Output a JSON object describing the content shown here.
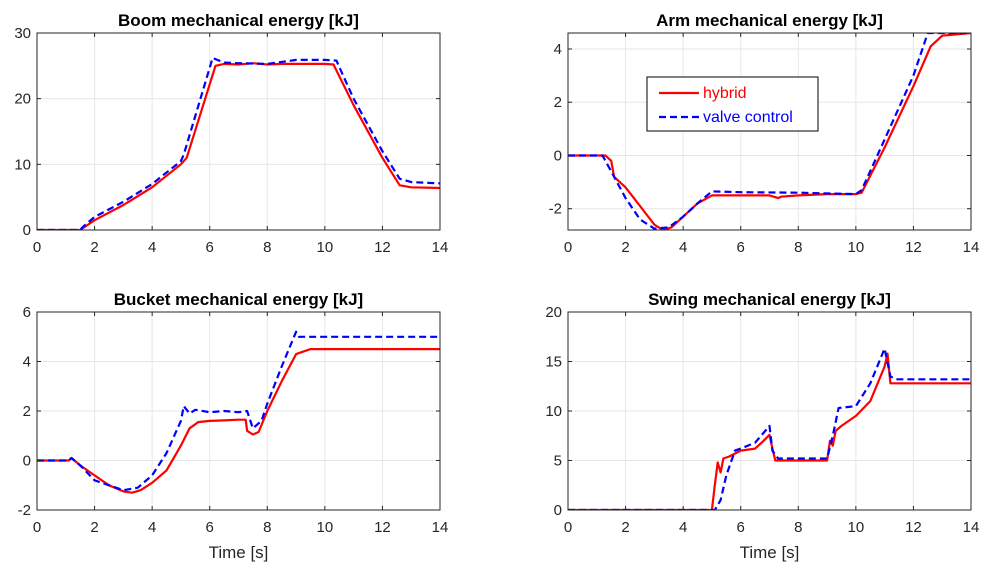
{
  "colors": {
    "hybrid": "#ff0000",
    "valve_control": "#0000ff",
    "grid": "#e6e6e6",
    "axes": "#262626"
  },
  "chart_data": [
    {
      "type": "line",
      "title": "Boom mechanical energy [kJ]",
      "xlabel": "",
      "ylabel": "",
      "xlim": [
        0,
        14
      ],
      "ylim": [
        0,
        30
      ],
      "xticks": [
        0,
        2,
        4,
        6,
        8,
        10,
        12,
        14
      ],
      "yticks": [
        0,
        10,
        20,
        30
      ],
      "grid": true,
      "series": [
        {
          "name": "hybrid",
          "style": "solid",
          "x": [
            0,
            1.5,
            1.6,
            2,
            3,
            4,
            5,
            5.2,
            6.2,
            6.5,
            7,
            7.5,
            8,
            8.5,
            9,
            9.5,
            10,
            10.3,
            11,
            12,
            12.6,
            13,
            14
          ],
          "y": [
            0,
            0,
            0.3,
            1.5,
            3.8,
            6.5,
            10,
            11,
            25,
            25.3,
            25.2,
            25.4,
            25.2,
            25.3,
            25.3,
            25.3,
            25.3,
            25.2,
            19,
            11,
            6.8,
            6.5,
            6.4
          ]
        },
        {
          "name": "valve control",
          "style": "dashed",
          "x": [
            0,
            1.5,
            1.6,
            2,
            3,
            4,
            5,
            5.1,
            6.1,
            6.5,
            7,
            8,
            9,
            10,
            10.4,
            11,
            12,
            12.6,
            13,
            14
          ],
          "y": [
            0,
            0,
            0.5,
            2,
            4.3,
            7,
            10.5,
            11.5,
            26.2,
            25.5,
            25.4,
            25.3,
            25.9,
            25.9,
            25.8,
            20,
            12,
            7.8,
            7.3,
            7.1
          ]
        }
      ]
    },
    {
      "type": "line",
      "title": "Arm mechanical energy [kJ]",
      "xlabel": "",
      "ylabel": "",
      "xlim": [
        0,
        14
      ],
      "ylim": [
        -2.8,
        4.6
      ],
      "xticks": [
        0,
        2,
        4,
        6,
        8,
        10,
        12,
        14
      ],
      "yticks": [
        -2,
        0,
        2,
        4
      ],
      "grid": true,
      "legend_position": "upper-left",
      "series": [
        {
          "name": "hybrid",
          "style": "solid",
          "x": [
            0,
            1.3,
            1.5,
            1.6,
            1.8,
            2,
            2.5,
            3,
            3.3,
            3.6,
            4,
            4.5,
            5,
            5.5,
            6,
            7,
            7.3,
            7.4,
            8,
            9,
            10,
            10.2,
            11,
            12,
            12.6,
            13,
            14
          ],
          "y": [
            0,
            0,
            -0.2,
            -0.8,
            -1.0,
            -1.2,
            -1.9,
            -2.6,
            -2.8,
            -2.7,
            -2.3,
            -1.8,
            -1.5,
            -1.5,
            -1.5,
            -1.5,
            -1.6,
            -1.55,
            -1.5,
            -1.45,
            -1.45,
            -1.4,
            0.3,
            2.6,
            4.1,
            4.5,
            4.6
          ]
        },
        {
          "name": "valve control",
          "style": "dashed",
          "x": [
            0,
            1.2,
            1.5,
            2,
            2.5,
            3,
            3.5,
            4,
            4.5,
            5,
            6,
            8,
            10,
            10.2,
            11,
            12,
            12.5,
            13,
            14
          ],
          "y": [
            0,
            0,
            -0.6,
            -1.6,
            -2.4,
            -2.75,
            -2.7,
            -2.3,
            -1.8,
            -1.35,
            -1.38,
            -1.4,
            -1.45,
            -1.3,
            0.6,
            3.0,
            4.6,
            4.6,
            4.6
          ]
        }
      ]
    },
    {
      "type": "line",
      "title": "Bucket mechanical energy [kJ]",
      "xlabel": "Time [s]",
      "ylabel": "",
      "xlim": [
        0,
        14
      ],
      "ylim": [
        -2,
        6
      ],
      "xticks": [
        0,
        2,
        4,
        6,
        8,
        10,
        12,
        14
      ],
      "yticks": [
        -2,
        0,
        2,
        4,
        6
      ],
      "grid": true,
      "series": [
        {
          "name": "hybrid",
          "style": "solid",
          "x": [
            0,
            1.1,
            1.2,
            1.5,
            2,
            2.5,
            3,
            3.3,
            3.6,
            4,
            4.5,
            5,
            5.3,
            5.6,
            6,
            6.5,
            7,
            7.25,
            7.3,
            7.5,
            7.7,
            8,
            8.5,
            9,
            9.5,
            10,
            11,
            12,
            13,
            14
          ],
          "y": [
            0,
            0,
            0.1,
            -0.2,
            -0.6,
            -1.0,
            -1.25,
            -1.3,
            -1.2,
            -0.9,
            -0.4,
            0.6,
            1.3,
            1.55,
            1.6,
            1.62,
            1.65,
            1.65,
            1.2,
            1.05,
            1.15,
            2.0,
            3.2,
            4.3,
            4.5,
            4.5,
            4.5,
            4.5,
            4.5,
            4.5
          ]
        },
        {
          "name": "valve control",
          "style": "dashed",
          "x": [
            0,
            1.1,
            1.2,
            1.5,
            2,
            2.5,
            3,
            3.5,
            4,
            4.5,
            5,
            5.1,
            5.3,
            5.5,
            6,
            6.5,
            7,
            7.3,
            7.5,
            7.8,
            8,
            8.5,
            9,
            9.1,
            9.5,
            10,
            11,
            12,
            13,
            14
          ],
          "y": [
            0,
            0,
            0.1,
            -0.2,
            -0.8,
            -1.0,
            -1.2,
            -1.1,
            -0.6,
            0.3,
            1.6,
            2.2,
            1.9,
            2.05,
            1.95,
            2.0,
            1.95,
            2.0,
            1.3,
            1.6,
            2.3,
            3.8,
            5.2,
            5.0,
            5.0,
            5.0,
            5.0,
            5.0,
            5.0,
            5.0
          ]
        }
      ]
    },
    {
      "type": "line",
      "title": "Swing mechanical energy [kJ]",
      "xlabel": "Time [s]",
      "ylabel": "",
      "xlim": [
        0,
        14
      ],
      "ylim": [
        0,
        20
      ],
      "xticks": [
        0,
        2,
        4,
        6,
        8,
        10,
        12,
        14
      ],
      "yticks": [
        0,
        5,
        10,
        15,
        20
      ],
      "grid": true,
      "series": [
        {
          "name": "hybrid",
          "style": "solid",
          "x": [
            0,
            5.0,
            5.1,
            5.2,
            5.3,
            5.4,
            5.6,
            6,
            6.5,
            6.8,
            7.0,
            7.1,
            7.2,
            7.5,
            8,
            8.5,
            9,
            9.1,
            9.2,
            9.3,
            9.5,
            10,
            10.5,
            11,
            11.1,
            11.2,
            12,
            13,
            14
          ],
          "y": [
            0,
            0,
            2.5,
            4.8,
            3.8,
            5.2,
            5.4,
            6.0,
            6.2,
            7.0,
            7.6,
            6.2,
            5.0,
            5.0,
            5.0,
            5.0,
            5.0,
            7.0,
            6.5,
            8.0,
            8.5,
            9.5,
            11.0,
            14.5,
            15.8,
            12.8,
            12.8,
            12.8,
            12.8
          ]
        },
        {
          "name": "valve control",
          "style": "dashed",
          "x": [
            0,
            5.1,
            5.3,
            5.5,
            5.8,
            6,
            6.5,
            7.0,
            7.1,
            7.3,
            8,
            9,
            9.2,
            9.4,
            10,
            10.5,
            11,
            11.2,
            11.4,
            12,
            13,
            14
          ],
          "y": [
            0,
            0,
            1.0,
            3.5,
            6.0,
            6.2,
            6.8,
            8.5,
            6.0,
            5.2,
            5.2,
            5.2,
            7.5,
            10.3,
            10.5,
            12.8,
            16.3,
            13.5,
            13.2,
            13.2,
            13.2,
            13.2
          ]
        }
      ]
    }
  ]
}
